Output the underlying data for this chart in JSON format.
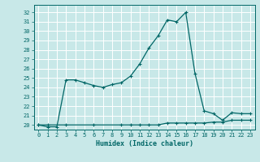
{
  "xlabel": "Humidex (Indice chaleur)",
  "bg_color": "#c8e8e8",
  "line_color": "#006666",
  "grid_color": "#ffffff",
  "xlim": [
    -0.5,
    23.5
  ],
  "ylim": [
    19.5,
    32.8
  ],
  "yticks": [
    20,
    21,
    22,
    23,
    24,
    25,
    26,
    27,
    28,
    29,
    30,
    31,
    32
  ],
  "xticks": [
    0,
    1,
    2,
    3,
    4,
    5,
    6,
    7,
    8,
    9,
    10,
    11,
    12,
    13,
    14,
    15,
    16,
    17,
    18,
    19,
    20,
    21,
    22,
    23
  ],
  "line1_x": [
    0,
    1,
    3,
    6,
    9,
    10,
    11,
    12,
    13,
    14,
    15,
    16,
    17,
    18,
    19,
    20,
    21,
    22,
    23
  ],
  "line1_y": [
    20.0,
    20.0,
    20.0,
    20.0,
    20.0,
    20.0,
    20.0,
    20.0,
    20.0,
    20.2,
    20.2,
    20.2,
    20.2,
    20.2,
    20.3,
    20.3,
    20.5,
    20.5,
    20.5
  ],
  "line2_x": [
    0,
    1,
    2,
    3,
    4,
    5,
    6,
    7,
    8,
    9,
    10,
    11,
    12,
    13,
    14,
    15,
    16,
    17,
    18,
    19,
    20,
    21,
    22,
    23
  ],
  "line2_y": [
    20.0,
    19.8,
    19.8,
    24.8,
    24.8,
    24.5,
    24.2,
    24.0,
    24.3,
    24.5,
    25.2,
    26.5,
    28.2,
    29.5,
    31.2,
    31.0,
    32.0,
    25.5,
    21.5,
    21.2,
    20.5,
    21.3,
    21.2,
    21.2
  ]
}
